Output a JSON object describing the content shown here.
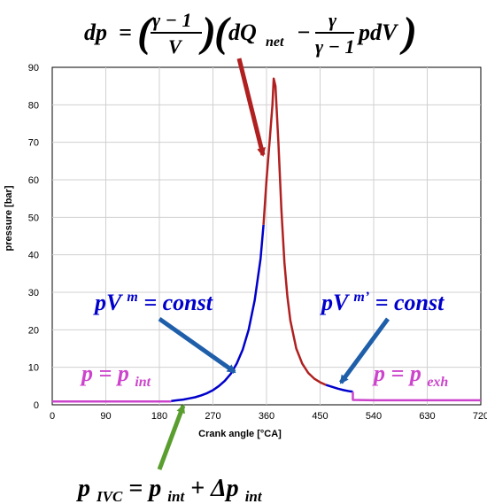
{
  "chart_data": {
    "type": "line",
    "xlabel": "Crank angle [°CA]",
    "ylabel": "pressure [bar]",
    "xlim": [
      0,
      720
    ],
    "ylim": [
      0,
      90
    ],
    "xticks": [
      0,
      90,
      180,
      270,
      360,
      450,
      540,
      630,
      720
    ],
    "yticks": [
      0,
      10,
      20,
      30,
      40,
      50,
      60,
      70,
      80,
      90
    ],
    "grid": true,
    "series": [
      {
        "color": "#cc44cc",
        "x": [
          0,
          30,
          60,
          90,
          120,
          150,
          180,
          200
        ],
        "y": [
          0.9,
          0.9,
          0.9,
          0.9,
          0.9,
          0.9,
          0.9,
          0.9
        ]
      },
      {
        "color": "#0000cc",
        "x": [
          200,
          210,
          220,
          230,
          240,
          250,
          260,
          270,
          280,
          290,
          300,
          310,
          320,
          330,
          340,
          350,
          355
        ],
        "y": [
          1.0,
          1.2,
          1.4,
          1.7,
          2.0,
          2.5,
          3.1,
          3.9,
          5.0,
          6.4,
          8.3,
          11.0,
          14.7,
          20.0,
          27.8,
          39.0,
          48.0
        ]
      },
      {
        "color": "#b02020",
        "x": [
          355,
          360,
          365,
          370,
          372,
          375,
          380,
          385,
          390,
          395,
          400,
          410,
          420,
          430,
          440,
          450,
          460
        ],
        "y": [
          48.0,
          60.0,
          70.0,
          80.0,
          87.0,
          85.0,
          70.0,
          52.0,
          38.0,
          29.0,
          22.5,
          15.0,
          11.0,
          8.5,
          7.0,
          6.0,
          5.3
        ]
      },
      {
        "color": "#0000cc",
        "x": [
          460,
          470,
          480,
          490,
          500,
          505
        ],
        "y": [
          5.3,
          4.8,
          4.3,
          3.9,
          3.6,
          3.5
        ]
      },
      {
        "color": "#cc44cc",
        "x": [
          505,
          505,
          540,
          600,
          660,
          720
        ],
        "y": [
          3.5,
          1.3,
          1.2,
          1.2,
          1.2,
          1.2
        ]
      }
    ]
  },
  "annotations": {
    "formula_top": {
      "lhs": "dp",
      "eq": "=",
      "frac1_num": "γ − 1",
      "frac1_den": "V",
      "paren_body": "dQ",
      "paren_sub": "net",
      "minus": "−",
      "frac2_num": "γ",
      "frac2_den": "γ − 1",
      "tail": "pdV"
    },
    "compression": {
      "text_main": "pV",
      "text_sup": "m",
      "text_rest": " = const",
      "color": "#0000cc"
    },
    "expansion": {
      "text_main": "pV",
      "text_sup": "m’",
      "text_rest": " = const",
      "color": "#0000cc"
    },
    "intake": {
      "text_main": "p = p",
      "text_sub": "int",
      "color": "#cc44cc"
    },
    "exhaust": {
      "text_main": "p = p",
      "text_sub": "exh",
      "color": "#cc44cc"
    },
    "ivc": {
      "p": "p",
      "p_sub": "IVC",
      "eq": " = p",
      "int_sub": "int",
      "plus": " + Δp",
      "delta_sub": "int"
    },
    "arrow_colors": {
      "combustion": "#b02020",
      "compression": "#1f5faa",
      "expansion": "#1f5faa",
      "ivc": "#5a9e2f"
    }
  }
}
